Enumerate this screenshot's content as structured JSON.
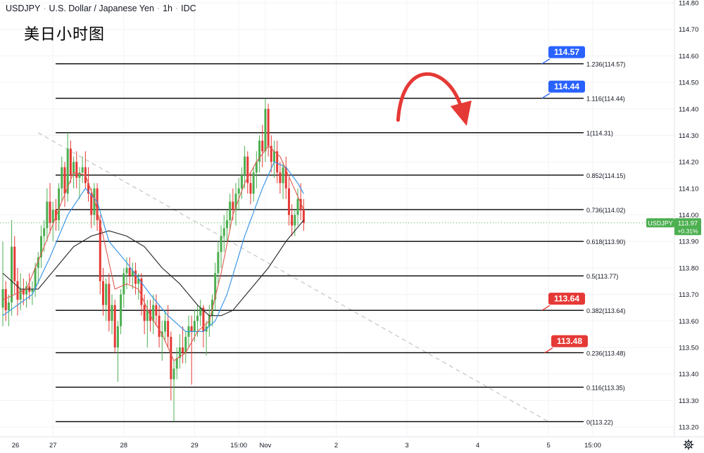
{
  "header": {
    "symbol": "USDJPY",
    "name": "U.S. Dollar / Japanese Yen",
    "interval": "1h",
    "source": "IDC"
  },
  "subtitle": "美日小时图",
  "icons": {
    "settings": "gear-icon"
  },
  "colors": {
    "up": "#4caf50",
    "down": "#e53935",
    "ma_fast": "#e05a4f",
    "ma_mid": "#2f8fe8",
    "ma_slow": "#222222",
    "fib_line": "#000000",
    "trendline": "#c8c8c8",
    "price_tag": "#4caf50",
    "blue_tag": "#2962ff",
    "red_tag": "#e53935",
    "arrow": "#e53935"
  },
  "chart_data": {
    "type": "candlestick",
    "title": "USDJPY · U.S. Dollar / Japanese Yen · 1h · IDC",
    "ylim": [
      113.18,
      114.82
    ],
    "y_ticks": [
      {
        "value": 114.8,
        "label": "114.80"
      },
      {
        "value": 114.7,
        "label": "114.70"
      },
      {
        "value": 114.6,
        "label": "114.60"
      },
      {
        "value": 114.5,
        "label": "114.50"
      },
      {
        "value": 114.4,
        "label": "114.40"
      },
      {
        "value": 114.3,
        "label": "114.30"
      },
      {
        "value": 114.2,
        "label": "114.20"
      },
      {
        "value": 114.1,
        "label": "114.10"
      },
      {
        "value": 114.0,
        "label": "114.00"
      },
      {
        "value": 113.9,
        "label": "113.90"
      },
      {
        "value": 113.8,
        "label": "113.80"
      },
      {
        "value": 113.7,
        "label": "113.70"
      },
      {
        "value": 113.6,
        "label": "113.60"
      },
      {
        "value": 113.5,
        "label": "113.50"
      },
      {
        "value": 113.4,
        "label": "113.40"
      },
      {
        "value": 113.3,
        "label": "113.30"
      },
      {
        "value": 113.2,
        "label": "113.20"
      }
    ],
    "x_ticks": [
      {
        "label": "26",
        "pos": -7
      },
      {
        "label": "27",
        "pos": 17
      },
      {
        "label": "28",
        "pos": 41
      },
      {
        "label": "29",
        "pos": 65
      },
      {
        "label": "15:00",
        "pos": 80
      },
      {
        "label": "Nov",
        "pos": 89
      },
      {
        "label": "2",
        "pos": 113
      },
      {
        "label": "3",
        "pos": 137
      },
      {
        "label": "4",
        "pos": 161
      },
      {
        "label": "5",
        "pos": 185
      },
      {
        "label": "15:00",
        "pos": 200
      }
    ],
    "current_price": {
      "symbol": "USDJPY",
      "value": 113.97,
      "label": "113.97",
      "change": "+0.31%"
    },
    "fib_levels": [
      {
        "ratio": "1.236",
        "value": 114.57,
        "label": "1.236(114.57)"
      },
      {
        "ratio": "1.116",
        "value": 114.44,
        "label": "1.116(114.44)"
      },
      {
        "ratio": "1",
        "value": 114.31,
        "label": "1(114.31)"
      },
      {
        "ratio": "0.852",
        "value": 114.15,
        "label": "0.852(114.15)"
      },
      {
        "ratio": "0.736",
        "value": 114.02,
        "label": "0.736(114.02)"
      },
      {
        "ratio": "0.618",
        "value": 113.9,
        "label": "0.618(113.90)"
      },
      {
        "ratio": "0.5",
        "value": 113.77,
        "label": "0.5(113.77)"
      },
      {
        "ratio": "0.382",
        "value": 113.64,
        "label": "0.382(113.64)"
      },
      {
        "ratio": "0.236",
        "value": 113.48,
        "label": "0.236(113.48)"
      },
      {
        "ratio": "0.116",
        "value": 113.35,
        "label": "0.116(113.35)"
      },
      {
        "ratio": "0",
        "value": 113.22,
        "label": "0(113.22)"
      }
    ],
    "level_tags": [
      {
        "value": 114.57,
        "label": "114.57",
        "color": "blue"
      },
      {
        "value": 114.44,
        "label": "114.44",
        "color": "blue"
      },
      {
        "value": 113.64,
        "label": "113.64",
        "color": "red"
      },
      {
        "value": 113.48,
        "label": "113.48",
        "color": "red"
      }
    ],
    "trendline": {
      "start": {
        "t": 12,
        "price": 114.31
      },
      "end": {
        "t": 185,
        "price": 113.22
      }
    },
    "arrow": {
      "from": {
        "t": 134,
        "price": 114.31
      },
      "peak": {
        "t": 146,
        "price": 114.51
      },
      "to": {
        "t": 157,
        "price": 114.32
      }
    },
    "candles": [
      [
        113.65,
        113.9,
        113.58,
        113.72
      ],
      [
        113.72,
        113.75,
        113.6,
        113.64
      ],
      [
        113.64,
        113.7,
        113.58,
        113.67
      ],
      [
        113.67,
        113.98,
        113.62,
        113.88
      ],
      [
        113.88,
        113.92,
        113.7,
        113.75
      ],
      [
        113.75,
        113.8,
        113.62,
        113.68
      ],
      [
        113.68,
        113.78,
        113.64,
        113.72
      ],
      [
        113.72,
        113.76,
        113.66,
        113.7
      ],
      [
        113.7,
        113.75,
        113.65,
        113.73
      ],
      [
        113.73,
        113.78,
        113.68,
        113.71
      ],
      [
        113.71,
        113.75,
        113.66,
        113.72
      ],
      [
        113.72,
        113.82,
        113.69,
        113.8
      ],
      [
        113.8,
        113.86,
        113.74,
        113.84
      ],
      [
        113.84,
        113.96,
        113.8,
        113.92
      ],
      [
        113.92,
        113.98,
        113.86,
        113.95
      ],
      [
        113.95,
        114.1,
        113.9,
        114.05
      ],
      [
        114.05,
        114.12,
        113.93,
        113.97
      ],
      [
        113.97,
        114.05,
        113.9,
        114.02
      ],
      [
        114.02,
        114.06,
        113.94,
        113.98
      ],
      [
        113.98,
        114.12,
        113.94,
        114.1
      ],
      [
        114.1,
        114.22,
        114.05,
        114.18
      ],
      [
        114.18,
        114.2,
        114.03,
        114.08
      ],
      [
        114.08,
        114.31,
        114.05,
        114.25
      ],
      [
        114.25,
        114.28,
        114.12,
        114.15
      ],
      [
        114.15,
        114.22,
        114.1,
        114.2
      ],
      [
        114.2,
        114.24,
        114.1,
        114.14
      ],
      [
        114.14,
        114.18,
        114.06,
        114.16
      ],
      [
        114.16,
        114.22,
        114.12,
        114.18
      ],
      [
        114.18,
        114.24,
        114.1,
        114.12
      ],
      [
        114.12,
        114.18,
        114.05,
        114.08
      ],
      [
        114.08,
        114.1,
        113.95,
        114.0
      ],
      [
        114.0,
        114.12,
        113.96,
        114.1
      ],
      [
        114.1,
        114.12,
        113.94,
        113.98
      ],
      [
        113.98,
        114.0,
        113.7,
        113.75
      ],
      [
        113.75,
        113.8,
        113.62,
        113.66
      ],
      [
        113.66,
        113.76,
        113.6,
        113.74
      ],
      [
        113.74,
        113.78,
        113.56,
        113.6
      ],
      [
        113.6,
        113.7,
        113.55,
        113.66
      ],
      [
        113.66,
        113.68,
        113.48,
        113.5
      ],
      [
        113.5,
        113.6,
        113.37,
        113.58
      ],
      [
        113.58,
        113.72,
        113.55,
        113.7
      ],
      [
        113.7,
        113.8,
        113.65,
        113.78
      ],
      [
        113.78,
        113.84,
        113.72,
        113.8
      ],
      [
        113.8,
        113.84,
        113.74,
        113.77
      ],
      [
        113.77,
        113.82,
        113.72,
        113.79
      ],
      [
        113.79,
        113.82,
        113.7,
        113.74
      ],
      [
        113.74,
        113.78,
        113.68,
        113.76
      ],
      [
        113.76,
        113.78,
        113.62,
        113.66
      ],
      [
        113.66,
        113.7,
        113.55,
        113.6
      ],
      [
        113.6,
        113.68,
        113.5,
        113.64
      ],
      [
        113.64,
        113.68,
        113.56,
        113.6
      ],
      [
        113.6,
        113.7,
        113.55,
        113.66
      ],
      [
        113.66,
        113.7,
        113.58,
        113.62
      ],
      [
        113.62,
        113.66,
        113.5,
        113.54
      ],
      [
        113.54,
        113.6,
        113.45,
        113.56
      ],
      [
        113.56,
        113.64,
        113.52,
        113.6
      ],
      [
        113.6,
        113.66,
        113.5,
        113.54
      ],
      [
        113.54,
        113.56,
        113.3,
        113.38
      ],
      [
        113.38,
        113.45,
        113.22,
        113.42
      ],
      [
        113.42,
        113.5,
        113.38,
        113.46
      ],
      [
        113.46,
        113.55,
        113.42,
        113.5
      ],
      [
        113.5,
        113.58,
        113.44,
        113.48
      ],
      [
        113.48,
        113.56,
        113.44,
        113.54
      ],
      [
        113.54,
        113.62,
        113.5,
        113.58
      ],
      [
        113.58,
        113.62,
        113.36,
        113.56
      ],
      [
        113.56,
        113.64,
        113.52,
        113.6
      ],
      [
        113.6,
        113.66,
        113.54,
        113.62
      ],
      [
        113.62,
        113.68,
        113.58,
        113.65
      ],
      [
        113.65,
        113.66,
        113.5,
        113.56
      ],
      [
        113.56,
        113.6,
        113.47,
        113.58
      ],
      [
        113.58,
        113.66,
        113.54,
        113.62
      ],
      [
        113.62,
        113.7,
        113.58,
        113.68
      ],
      [
        113.68,
        113.82,
        113.64,
        113.78
      ],
      [
        113.78,
        113.9,
        113.74,
        113.86
      ],
      [
        113.86,
        113.96,
        113.8,
        113.92
      ],
      [
        113.92,
        114.0,
        113.86,
        113.95
      ],
      [
        113.95,
        114.02,
        113.9,
        113.98
      ],
      [
        113.98,
        114.08,
        113.94,
        114.05
      ],
      [
        114.05,
        114.1,
        113.98,
        114.02
      ],
      [
        114.02,
        114.12,
        113.96,
        114.08
      ],
      [
        114.08,
        114.14,
        114.02,
        114.1
      ],
      [
        114.1,
        114.18,
        114.06,
        114.15
      ],
      [
        114.15,
        114.26,
        114.1,
        114.22
      ],
      [
        114.22,
        114.24,
        114.08,
        114.12
      ],
      [
        114.12,
        114.16,
        114.04,
        114.08
      ],
      [
        114.08,
        114.18,
        114.05,
        114.16
      ],
      [
        114.16,
        114.24,
        114.1,
        114.2
      ],
      [
        114.2,
        114.3,
        114.16,
        114.28
      ],
      [
        114.28,
        114.34,
        114.18,
        114.24
      ],
      [
        114.24,
        114.44,
        114.2,
        114.4
      ],
      [
        114.4,
        114.42,
        114.22,
        114.26
      ],
      [
        114.26,
        114.3,
        114.16,
        114.2
      ],
      [
        114.2,
        114.28,
        114.14,
        114.24
      ],
      [
        114.24,
        114.28,
        114.12,
        114.16
      ],
      [
        114.16,
        114.2,
        114.08,
        114.12
      ],
      [
        114.12,
        114.2,
        114.06,
        114.18
      ],
      [
        114.18,
        114.22,
        114.06,
        114.1
      ],
      [
        114.1,
        114.14,
        113.96,
        114.0
      ],
      [
        114.0,
        114.04,
        113.92,
        113.96
      ],
      [
        113.96,
        114.02,
        113.92,
        114.0
      ],
      [
        114.0,
        114.1,
        113.96,
        114.06
      ],
      [
        114.06,
        114.12,
        113.98,
        114.02
      ],
      [
        114.02,
        114.06,
        113.94,
        113.97
      ]
    ],
    "ma_fast": [
      [
        0,
        113.68
      ],
      [
        8,
        113.72
      ],
      [
        14,
        113.88
      ],
      [
        20,
        114.05
      ],
      [
        24,
        114.16
      ],
      [
        28,
        114.15
      ],
      [
        31,
        114.06
      ],
      [
        34,
        113.92
      ],
      [
        38,
        113.72
      ],
      [
        42,
        113.74
      ],
      [
        46,
        113.72
      ],
      [
        50,
        113.62
      ],
      [
        54,
        113.55
      ],
      [
        58,
        113.45
      ],
      [
        62,
        113.48
      ],
      [
        66,
        113.56
      ],
      [
        70,
        113.6
      ],
      [
        74,
        113.78
      ],
      [
        78,
        114.0
      ],
      [
        82,
        114.12
      ],
      [
        86,
        114.2
      ],
      [
        90,
        114.26
      ],
      [
        94,
        114.22
      ],
      [
        98,
        114.12
      ],
      [
        102,
        114.02
      ]
    ],
    "ma_mid": [
      [
        0,
        113.62
      ],
      [
        10,
        113.7
      ],
      [
        16,
        113.84
      ],
      [
        22,
        114.0
      ],
      [
        28,
        114.1
      ],
      [
        32,
        114.05
      ],
      [
        36,
        113.9
      ],
      [
        42,
        113.82
      ],
      [
        50,
        113.7
      ],
      [
        56,
        113.62
      ],
      [
        62,
        113.56
      ],
      [
        68,
        113.56
      ],
      [
        72,
        113.6
      ],
      [
        76,
        113.7
      ],
      [
        82,
        113.92
      ],
      [
        88,
        114.1
      ],
      [
        92,
        114.2
      ],
      [
        96,
        114.18
      ],
      [
        100,
        114.12
      ],
      [
        102,
        114.08
      ]
    ],
    "ma_slow": [
      [
        0,
        113.78
      ],
      [
        6,
        113.72
      ],
      [
        12,
        113.72
      ],
      [
        18,
        113.8
      ],
      [
        24,
        113.88
      ],
      [
        30,
        113.92
      ],
      [
        36,
        113.94
      ],
      [
        42,
        113.92
      ],
      [
        48,
        113.88
      ],
      [
        54,
        113.8
      ],
      [
        60,
        113.74
      ],
      [
        66,
        113.66
      ],
      [
        70,
        113.62
      ],
      [
        74,
        113.62
      ],
      [
        78,
        113.64
      ],
      [
        84,
        113.72
      ],
      [
        90,
        113.8
      ],
      [
        96,
        113.9
      ],
      [
        102,
        113.98
      ]
    ]
  }
}
